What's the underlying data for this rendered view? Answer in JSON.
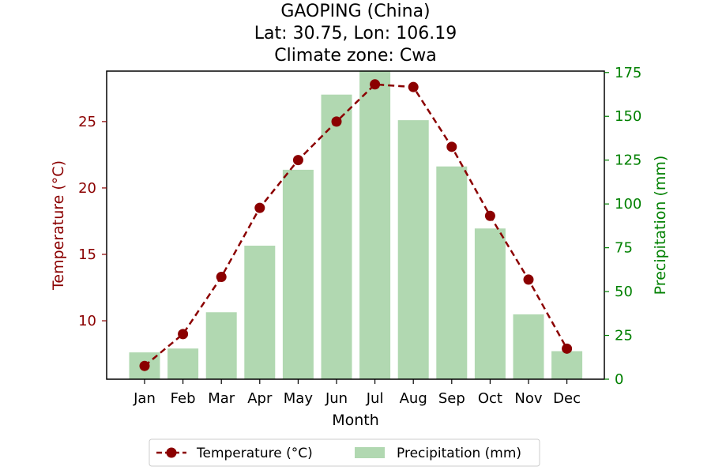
{
  "chart_data": {
    "type": "bar+line",
    "title_lines": [
      "GAOPING (China)",
      "Lat: 30.75, Lon: 106.19",
      "Climate zone: Cwa"
    ],
    "xlabel": "Month",
    "ylabel_left": "Temperature (°C)",
    "ylabel_right": "Precipitation (mm)",
    "categories": [
      "Jan",
      "Feb",
      "Mar",
      "Apr",
      "May",
      "Jun",
      "Jul",
      "Aug",
      "Sep",
      "Oct",
      "Nov",
      "Dec"
    ],
    "temperature": [
      6.6,
      9.0,
      13.3,
      18.5,
      22.1,
      25.0,
      27.8,
      27.6,
      23.1,
      17.9,
      13.1,
      7.9
    ],
    "precipitation": [
      15.3,
      17.5,
      38.2,
      76.2,
      119.5,
      162.4,
      176.1,
      147.8,
      121.4,
      86.0,
      37.0,
      16.0
    ],
    "ylim_left": [
      5.6,
      28.8
    ],
    "ylim_right": [
      0,
      175.8
    ],
    "yticks_left": [
      10,
      15,
      20,
      25
    ],
    "yticks_right": [
      0,
      25,
      50,
      75,
      100,
      125,
      150,
      175
    ],
    "legend": {
      "placement": "below",
      "items": [
        {
          "label": "Temperature (°C)",
          "kind": "line-marker"
        },
        {
          "label": "Precipitation (mm)",
          "kind": "bar"
        }
      ]
    },
    "colors": {
      "temperature": "#8b0000",
      "precipitation_bar": "#b1d8b1",
      "right_axis": "#008000"
    },
    "grid": false
  }
}
